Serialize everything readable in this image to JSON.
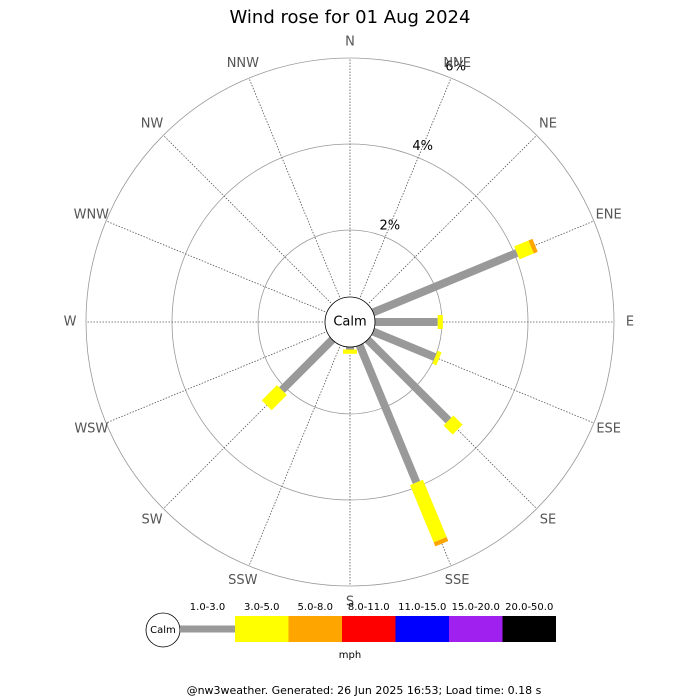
{
  "chart_data": {
    "type": "windrose",
    "title": "Wind rose for 01 Aug 2024",
    "categories": [
      "N",
      "NNE",
      "NE",
      "ENE",
      "E",
      "ESE",
      "SE",
      "SSE",
      "S",
      "SSW",
      "SW",
      "WSW",
      "W",
      "WNW",
      "NW",
      "NNW"
    ],
    "calm_label": "Calm",
    "rlim": [
      0,
      6
    ],
    "rticks": [
      {
        "value": 2,
        "label": "2%"
      },
      {
        "value": 4,
        "label": "4%"
      },
      {
        "value": 6,
        "label": "6%"
      }
    ],
    "legend_unit": "mph",
    "series": [
      {
        "name": "1.0-3.0",
        "color": "#999999",
        "values": [
          0,
          0,
          0,
          4.06,
          1.9,
          2.0,
          3.1,
          3.9,
          0.5,
          0.45,
          2.1,
          0,
          0,
          0,
          0,
          0
        ]
      },
      {
        "name": "3.0-5.0",
        "color": "#ffff00",
        "values": [
          0,
          0,
          0,
          0.36,
          0.12,
          0.1,
          0.3,
          1.44,
          0.1,
          0,
          0.5,
          0,
          0,
          0,
          0,
          0
        ]
      },
      {
        "name": "5.0-8.0",
        "color": "#ffa500",
        "values": [
          0,
          0,
          0,
          0.1,
          0,
          0,
          0,
          0.1,
          0,
          0,
          0,
          0,
          0,
          0,
          0,
          0
        ]
      },
      {
        "name": "8.0-11.0",
        "color": "#ff0000",
        "values": [
          0,
          0,
          0,
          0,
          0,
          0,
          0,
          0,
          0,
          0,
          0,
          0,
          0,
          0,
          0,
          0
        ]
      },
      {
        "name": "11.0-15.0",
        "color": "#0000ff",
        "values": [
          0,
          0,
          0,
          0,
          0,
          0,
          0,
          0,
          0,
          0,
          0,
          0,
          0,
          0,
          0,
          0
        ]
      },
      {
        "name": "15.0-20.0",
        "color": "#a020f0",
        "values": [
          0,
          0,
          0,
          0,
          0,
          0,
          0,
          0,
          0,
          0,
          0,
          0,
          0,
          0,
          0,
          0
        ]
      },
      {
        "name": "20.0-50.0",
        "color": "#000000",
        "values": [
          0,
          0,
          0,
          0,
          0,
          0,
          0,
          0,
          0,
          0,
          0,
          0,
          0,
          0,
          0,
          0
        ]
      }
    ]
  },
  "footer": "@nw3weather. Generated: 26 Jun 2025 16:53; Load time: 0.18 s"
}
